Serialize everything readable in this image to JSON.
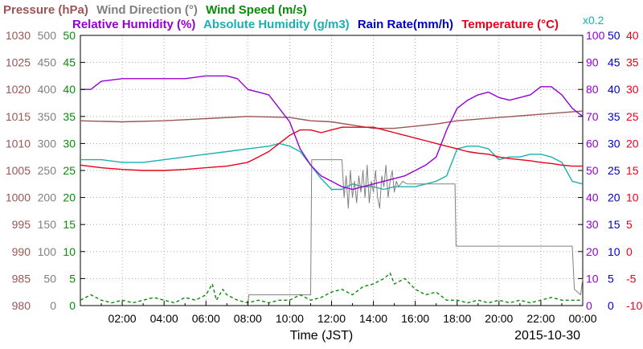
{
  "chart_data": {
    "type": "line",
    "legend": [
      {
        "key": "pressure",
        "label": "Pressure (hPa)",
        "color": "#9b5555"
      },
      {
        "key": "wind_direction",
        "label": "Wind Direction (°)",
        "color": "#808080"
      },
      {
        "key": "wind_speed",
        "label": "Wind Speed (m/s)",
        "color": "#0a8a0a"
      },
      {
        "key": "relative_humidity",
        "label": "Relative Humidity (%)",
        "color": "#9400d3"
      },
      {
        "key": "absolute_humidity",
        "label": "Absolute Humidity (g/m3)",
        "color": "#1bb0b0"
      },
      {
        "key": "rain_rate",
        "label": "Rain Rate(mm/h)",
        "color": "#0000c8"
      },
      {
        "key": "temperature",
        "label": "Temperature (°C)",
        "color": "#e8001c"
      }
    ],
    "rain_scale_note": "x0.2",
    "xlabel": "Time (JST)",
    "date_label": "2015-10-30",
    "x_tick_labels": [
      "02:00",
      "04:00",
      "06:00",
      "08:00",
      "10:00",
      "12:00",
      "14:00",
      "16:00",
      "18:00",
      "20:00",
      "22:00",
      "00:00"
    ],
    "x_tick_hours": [
      2,
      4,
      6,
      8,
      10,
      12,
      14,
      16,
      18,
      20,
      22,
      24
    ],
    "xlim": [
      0,
      24
    ],
    "grid": true,
    "axes": {
      "pressure": {
        "range": [
          980,
          1030
        ],
        "ticks": [
          "980",
          "985",
          "990",
          "995",
          "1000",
          "1005",
          "1010",
          "1015",
          "1020",
          "1025",
          "1030"
        ]
      },
      "wind_direction": {
        "range": [
          0,
          500
        ],
        "ticks": [
          "0",
          "50",
          "100",
          "150",
          "200",
          "250",
          "300",
          "350",
          "400",
          "450",
          "500"
        ]
      },
      "wind_speed": {
        "range": [
          0,
          50
        ],
        "ticks": [
          "0",
          "5",
          "10",
          "15",
          "20",
          "25",
          "30",
          "35",
          "40",
          "45",
          "50"
        ]
      },
      "relative_humidity": {
        "range": [
          0,
          100
        ],
        "ticks": [
          "0",
          "10",
          "20",
          "30",
          "40",
          "50",
          "60",
          "70",
          "80",
          "90",
          "100"
        ]
      },
      "rain_rate": {
        "range": [
          0,
          50
        ],
        "ticks": [
          "0",
          "5",
          "10",
          "15",
          "20",
          "25",
          "30",
          "35",
          "40",
          "45",
          "50"
        ]
      },
      "temperature": {
        "range": [
          -10,
          40
        ],
        "ticks": [
          "-10",
          "-5",
          "0",
          "5",
          "10",
          "15",
          "20",
          "25",
          "30",
          "35",
          "40"
        ]
      }
    },
    "series": [
      {
        "key": "pressure",
        "axis": "pressure",
        "style": "solid",
        "x": [
          0,
          2,
          4,
          6,
          8,
          10,
          11,
          12,
          13,
          14,
          15,
          16,
          17,
          18,
          20,
          22,
          24
        ],
        "y": [
          1014.2,
          1014.0,
          1014.2,
          1014.6,
          1015.0,
          1014.8,
          1014.2,
          1014.0,
          1013.4,
          1012.8,
          1012.8,
          1013.2,
          1013.6,
          1014.2,
          1014.8,
          1015.4,
          1016.0
        ]
      },
      {
        "key": "wind_direction",
        "axis": "wind_direction",
        "style": "solid",
        "x": [
          8,
          8.05,
          11,
          11.05,
          11.3,
          11.35,
          12.5,
          12.6,
          12.7,
          12.8,
          12.9,
          13.0,
          13.1,
          13.2,
          13.3,
          13.4,
          13.5,
          13.6,
          13.7,
          13.8,
          13.9,
          14.0,
          14.1,
          14.2,
          14.3,
          14.4,
          14.5,
          14.6,
          14.7,
          14.8,
          14.9,
          15.0,
          15.1,
          15.2,
          15.4,
          15.6,
          16.0,
          17.0,
          17.9,
          17.95,
          23.5,
          23.6,
          23.9,
          24
        ],
        "y": [
          0,
          20,
          20,
          270,
          270,
          270,
          270,
          200,
          240,
          180,
          250,
          200,
          230,
          190,
          240,
          210,
          250,
          200,
          260,
          190,
          230,
          210,
          250,
          200,
          180,
          240,
          220,
          260,
          200,
          230,
          250,
          210,
          230,
          220,
          230,
          225,
          225,
          225,
          225,
          110,
          110,
          30,
          20,
          50
        ]
      },
      {
        "key": "wind_speed",
        "axis": "wind_speed",
        "style": "dashed",
        "x": [
          0,
          0.5,
          1.0,
          1.5,
          2.0,
          2.5,
          3.0,
          3.5,
          4.0,
          4.5,
          5.0,
          5.5,
          6.0,
          6.3,
          6.5,
          6.8,
          7.0,
          7.5,
          8.0,
          8.5,
          9.0,
          9.5,
          10.0,
          10.5,
          11.0,
          11.5,
          12.0,
          12.5,
          13.0,
          13.5,
          14.0,
          14.5,
          14.8,
          15.0,
          15.5,
          16.0,
          16.5,
          17.0,
          17.5,
          18.0,
          18.5,
          19.0,
          19.5,
          20.0,
          20.5,
          21.0,
          21.5,
          22.0,
          22.5,
          23.0,
          23.5,
          24.0
        ],
        "y": [
          1,
          2,
          1,
          0.5,
          1,
          0.5,
          1,
          1.5,
          1,
          0.5,
          1.5,
          1,
          2,
          4,
          1,
          3,
          2,
          1,
          0.5,
          1,
          0.5,
          1,
          1,
          2,
          1,
          1.5,
          2.5,
          3,
          2,
          3.5,
          4,
          5,
          6,
          4,
          5,
          3,
          2,
          2.5,
          1,
          1,
          0.5,
          1,
          0.5,
          1,
          0.5,
          1,
          0.5,
          1,
          1.5,
          1,
          1,
          1
        ]
      },
      {
        "key": "relative_humidity",
        "axis": "relative_humidity",
        "style": "solid",
        "x": [
          0,
          0.5,
          1,
          2,
          3,
          4,
          5,
          6,
          7,
          7.5,
          8,
          8.5,
          9,
          9.5,
          10,
          10.5,
          11,
          11.5,
          12,
          12.5,
          13,
          13.5,
          14,
          14.5,
          15,
          15.5,
          16,
          16.5,
          17,
          17.5,
          18,
          18.5,
          19,
          19.5,
          20,
          20.5,
          21,
          21.5,
          22,
          22.5,
          23,
          23.5,
          24
        ],
        "y": [
          80,
          80,
          83,
          84,
          84,
          84,
          84,
          85,
          85,
          84,
          80,
          79,
          78,
          73,
          68,
          58,
          52,
          48,
          46,
          44,
          43,
          44,
          45,
          46,
          47,
          48,
          50,
          52,
          55,
          65,
          73,
          76,
          78,
          79,
          77,
          76,
          77,
          78,
          81,
          81,
          78,
          73,
          70
        ]
      },
      {
        "key": "absolute_humidity",
        "axis": "relative_humidity",
        "style": "solid",
        "x": [
          0,
          1,
          2,
          3,
          4,
          5,
          6,
          7,
          8,
          9,
          9.5,
          10,
          10.5,
          11,
          11.5,
          12,
          12.5,
          13,
          13.5,
          14,
          14.5,
          15,
          15.5,
          16,
          16.5,
          17,
          17.5,
          18,
          18.5,
          19,
          19.5,
          20,
          20.5,
          21,
          21.5,
          22,
          22.5,
          23,
          23.5,
          24
        ],
        "y": [
          54,
          54,
          53,
          53,
          54,
          55,
          56,
          57,
          58,
          59,
          60,
          59,
          57,
          52,
          47,
          43,
          43,
          45,
          44,
          44,
          43,
          44,
          44,
          44,
          45,
          46,
          48,
          58,
          59,
          59,
          58,
          54,
          55,
          55,
          56,
          56,
          55,
          53,
          46,
          45
        ]
      },
      {
        "key": "temperature",
        "axis": "temperature",
        "style": "solid",
        "x": [
          0,
          1,
          2,
          3,
          4,
          5,
          6,
          7,
          8,
          8.5,
          9,
          9.5,
          10,
          10.5,
          11,
          11.5,
          12,
          12.5,
          13,
          13.5,
          14,
          14.5,
          15,
          15.5,
          16,
          16.5,
          17,
          17.5,
          18,
          18.5,
          19,
          19.5,
          20,
          20.5,
          21,
          21.5,
          22,
          22.5,
          23,
          23.5,
          24
        ],
        "y": [
          16.0,
          15.5,
          15.2,
          15.0,
          15.0,
          15.2,
          15.5,
          15.8,
          16.5,
          17.5,
          18.5,
          20.0,
          21.5,
          22.5,
          22.5,
          22.0,
          22.5,
          23.0,
          23.0,
          23.0,
          23.0,
          22.5,
          22.0,
          21.5,
          21.0,
          20.5,
          20.0,
          19.5,
          19.0,
          18.5,
          18.2,
          18.0,
          17.5,
          17.2,
          17.0,
          16.8,
          16.5,
          16.3,
          16.0,
          15.8,
          15.8
        ]
      }
    ]
  }
}
